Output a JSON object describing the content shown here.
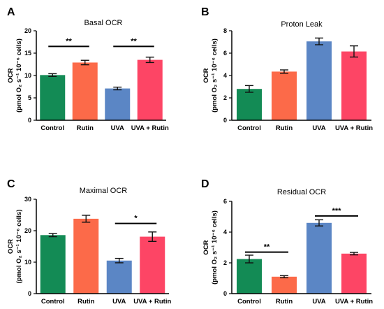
{
  "chart_data": [
    {
      "type": "bar",
      "panel": "A",
      "title": "Basal OCR",
      "ylabel_line1": "OCR",
      "ylabel_line2": "(pmol O₂ s⁻¹ 10⁻⁶ cells)",
      "categories": [
        "Control",
        "Rutin",
        "UVA",
        "UVA + Rutin"
      ],
      "values": [
        10.1,
        12.9,
        7.1,
        13.5
      ],
      "errors": [
        0.3,
        0.5,
        0.3,
        0.6
      ],
      "colors": [
        "#138b55",
        "#fc6a49",
        "#5b86c5",
        "#fd4565"
      ],
      "ylim": [
        0,
        20
      ],
      "yticks": [
        "0",
        "5",
        "10",
        "15",
        "20"
      ],
      "significance": [
        {
          "from": 0,
          "to": 1,
          "label": "**",
          "y": 16.5
        },
        {
          "from": 2,
          "to": 3,
          "label": "**",
          "y": 16.5
        }
      ]
    },
    {
      "type": "bar",
      "panel": "B",
      "title": "Proton Leak",
      "ylabel_line1": "OCR",
      "ylabel_line2": "(pmol O₂ s⁻¹ 10⁻⁶ cells)",
      "categories": [
        "Control",
        "Rutin",
        "UVA",
        "UVA + Rutin"
      ],
      "values": [
        2.8,
        4.35,
        7.05,
        6.15
      ],
      "errors": [
        0.3,
        0.15,
        0.3,
        0.5
      ],
      "colors": [
        "#138b55",
        "#fc6a49",
        "#5b86c5",
        "#fd4565"
      ],
      "ylim": [
        0,
        8
      ],
      "yticks": [
        "0",
        "2",
        "4",
        "6",
        "8"
      ],
      "significance": []
    },
    {
      "type": "bar",
      "panel": "C",
      "title": "Maximal OCR",
      "ylabel_line1": "OCR",
      "ylabel_line2": "(pmol O₂ s⁻¹ 10⁻⁶ cells)",
      "categories": [
        "Control",
        "Rutin",
        "UVA",
        "UVA + Rutin"
      ],
      "values": [
        18.6,
        23.8,
        10.5,
        18.1
      ],
      "errors": [
        0.5,
        1.1,
        0.7,
        1.5
      ],
      "colors": [
        "#138b55",
        "#fc6a49",
        "#5b86c5",
        "#fd4565"
      ],
      "ylim": [
        0,
        30
      ],
      "yticks": [
        "0",
        "10",
        "20",
        "30"
      ],
      "significance": [
        {
          "from": 2,
          "to": 3,
          "label": "*",
          "y": 22.3
        }
      ]
    },
    {
      "type": "bar",
      "panel": "D",
      "title": "Residual OCR",
      "ylabel_line1": "OCR",
      "ylabel_line2": "(pmol O₂ s⁻¹ 10⁻⁶ cells)",
      "categories": [
        "Control",
        "Rutin",
        "UVA",
        "UVA + Rutin"
      ],
      "values": [
        2.25,
        1.1,
        4.6,
        2.6
      ],
      "errors": [
        0.25,
        0.07,
        0.2,
        0.08
      ],
      "colors": [
        "#138b55",
        "#fc6a49",
        "#5b86c5",
        "#fd4565"
      ],
      "ylim": [
        0,
        6
      ],
      "yticks": [
        "0",
        "2",
        "4",
        "6"
      ],
      "significance": [
        {
          "from": 0,
          "to": 1,
          "label": "**",
          "y": 2.7
        },
        {
          "from": 2,
          "to": 3,
          "label": "***",
          "y": 5.05
        }
      ]
    }
  ]
}
